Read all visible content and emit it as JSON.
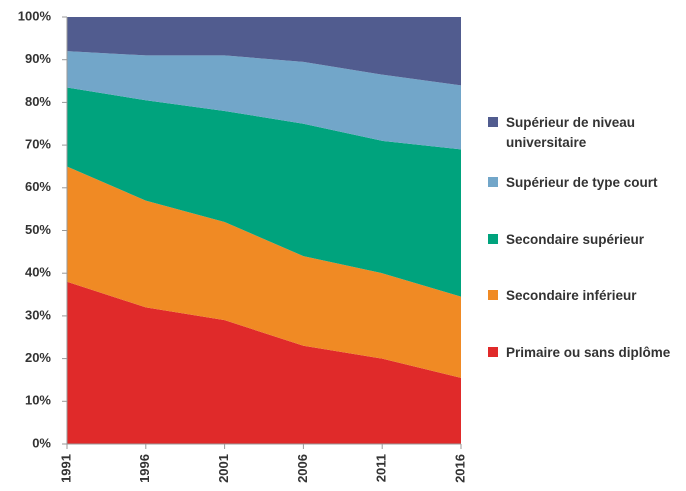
{
  "chart_data": {
    "type": "stacked_area",
    "categories": [
      "1991",
      "1996",
      "2001",
      "2006",
      "2011",
      "2016"
    ],
    "series": [
      {
        "name": "Primaire ou sans diplôme",
        "color": "#e02a2a",
        "values": [
          38,
          32,
          29,
          23,
          20,
          15.5
        ]
      },
      {
        "name": "Secondaire inférieur",
        "color": "#f08a24",
        "values": [
          27,
          25,
          23,
          21,
          20,
          19
        ]
      },
      {
        "name": "Secondaire supérieur",
        "color": "#00a37d",
        "values": [
          18.5,
          23.5,
          26,
          31,
          31,
          34.5
        ]
      },
      {
        "name": "Supérieur de type court",
        "color": "#72a6c9",
        "values": [
          8.5,
          10.5,
          13,
          14.5,
          15.5,
          15
        ]
      },
      {
        "name": "Supérieur de niveau universitaire",
        "color": "#515c8f",
        "values": [
          8,
          9,
          9,
          10.5,
          13.5,
          16
        ]
      }
    ],
    "ylim": [
      0,
      100
    ],
    "yticks": [
      {
        "value": 0,
        "label": "0%"
      },
      {
        "value": 10,
        "label": "10%"
      },
      {
        "value": 20,
        "label": "20%"
      },
      {
        "value": 30,
        "label": "30%"
      },
      {
        "value": 40,
        "label": "40%"
      },
      {
        "value": 50,
        "label": "50%"
      },
      {
        "value": 60,
        "label": "60%"
      },
      {
        "value": 70,
        "label": "70%"
      },
      {
        "value": 80,
        "label": "80%"
      },
      {
        "value": 90,
        "label": "90%"
      },
      {
        "value": 100,
        "label": "100%"
      }
    ],
    "legend": "right"
  }
}
